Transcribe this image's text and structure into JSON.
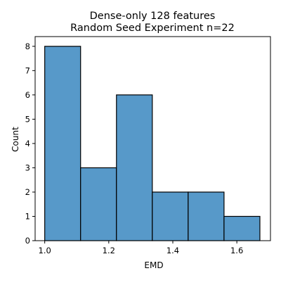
{
  "chart_data": {
    "type": "bar",
    "title": [
      "Dense-only 128 features",
      "Random Seed Experiment n=22"
    ],
    "xlabel": "EMD",
    "ylabel": "Count",
    "bin_edges": [
      1.0,
      1.112,
      1.224,
      1.336,
      1.448,
      1.56,
      1.672
    ],
    "counts": [
      8,
      3,
      6,
      2,
      2,
      1
    ],
    "xlim": [
      0.97,
      1.705
    ],
    "ylim": [
      0,
      8.4
    ],
    "x_ticks": [
      1.0,
      1.2,
      1.4,
      1.6
    ],
    "x_tick_labels": [
      "1.0",
      "1.2",
      "1.4",
      "1.6"
    ],
    "y_ticks": [
      0,
      1,
      2,
      3,
      4,
      5,
      6,
      7,
      8
    ],
    "y_tick_labels": [
      "0",
      "1",
      "2",
      "3",
      "4",
      "5",
      "6",
      "7",
      "8"
    ],
    "bar_color": "#5799c9",
    "edge_color": "#000000",
    "grid": false
  }
}
